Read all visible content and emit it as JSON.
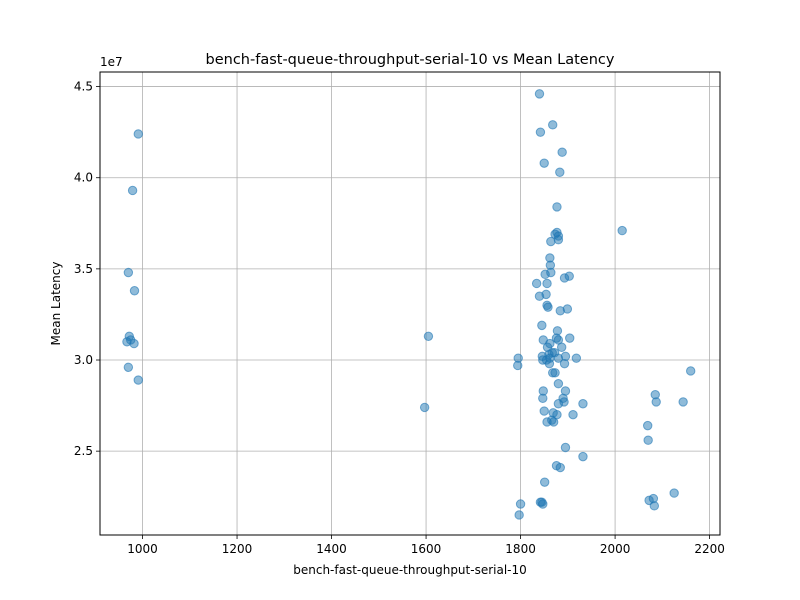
{
  "chart_data": {
    "type": "scatter",
    "title": "bench-fast-queue-throughput-serial-10 vs Mean Latency",
    "xlabel": "bench-fast-queue-throughput-serial-10",
    "ylabel": "Mean Latency",
    "y_offset_label": "1e7",
    "xlim": [
      910,
      2222
    ],
    "ylim": [
      20400000,
      45800000
    ],
    "xticks": [
      1000,
      1200,
      1400,
      1600,
      1800,
      2000,
      2200
    ],
    "xtick_labels": [
      "1000",
      "1200",
      "1400",
      "1600",
      "1800",
      "2000",
      "2200"
    ],
    "yticks": [
      25000000,
      30000000,
      35000000,
      40000000,
      45000000
    ],
    "ytick_labels": [
      "2.5",
      "3.0",
      "3.5",
      "4.0",
      "4.5"
    ],
    "grid": true,
    "marker_color": "#1f77b4",
    "marker_alpha": 0.5,
    "series": [
      {
        "points": [
          [
            991,
            42400000
          ],
          [
            979,
            39300000
          ],
          [
            970,
            34800000
          ],
          [
            983,
            33800000
          ],
          [
            972,
            31300000
          ],
          [
            975,
            31100000
          ],
          [
            967,
            31000000
          ],
          [
            982,
            30900000
          ],
          [
            970,
            29600000
          ],
          [
            991,
            28900000
          ],
          [
            1605,
            31300000
          ],
          [
            1597,
            27400000
          ],
          [
            1795,
            30100000
          ],
          [
            1794,
            29700000
          ],
          [
            1800,
            22100000
          ],
          [
            1797,
            21500000
          ],
          [
            1840,
            44600000
          ],
          [
            1842,
            42500000
          ],
          [
            1868,
            42900000
          ],
          [
            1888,
            41400000
          ],
          [
            1850,
            40800000
          ],
          [
            1883,
            40300000
          ],
          [
            1877,
            38400000
          ],
          [
            1877,
            37000000
          ],
          [
            1873,
            36900000
          ],
          [
            1880,
            36800000
          ],
          [
            1880,
            36600000
          ],
          [
            1864,
            36500000
          ],
          [
            1862,
            35600000
          ],
          [
            1863,
            35200000
          ],
          [
            1852,
            34700000
          ],
          [
            1864,
            34800000
          ],
          [
            1893,
            34500000
          ],
          [
            1903,
            34600000
          ],
          [
            1834,
            34200000
          ],
          [
            1856,
            34200000
          ],
          [
            1840,
            33500000
          ],
          [
            1854,
            33600000
          ],
          [
            1856,
            33000000
          ],
          [
            1858,
            32900000
          ],
          [
            1884,
            32700000
          ],
          [
            1899,
            32800000
          ],
          [
            1845,
            31900000
          ],
          [
            1878,
            31600000
          ],
          [
            1848,
            31100000
          ],
          [
            1876,
            31200000
          ],
          [
            1880,
            31100000
          ],
          [
            1904,
            31200000
          ],
          [
            1862,
            30900000
          ],
          [
            1857,
            30700000
          ],
          [
            1887,
            30700000
          ],
          [
            1867,
            30400000
          ],
          [
            1872,
            30400000
          ],
          [
            1846,
            30200000
          ],
          [
            1855,
            30000000
          ],
          [
            1860,
            30300000
          ],
          [
            1862,
            30100000
          ],
          [
            1880,
            30100000
          ],
          [
            1895,
            30200000
          ],
          [
            1918,
            30100000
          ],
          [
            1847,
            30000000
          ],
          [
            1861,
            29800000
          ],
          [
            1893,
            29800000
          ],
          [
            1868,
            29300000
          ],
          [
            1873,
            29300000
          ],
          [
            1880,
            28700000
          ],
          [
            1848,
            28300000
          ],
          [
            1895,
            28300000
          ],
          [
            1847,
            27900000
          ],
          [
            1890,
            27900000
          ],
          [
            1892,
            27700000
          ],
          [
            1880,
            27600000
          ],
          [
            1932,
            27600000
          ],
          [
            1850,
            27200000
          ],
          [
            1869,
            27100000
          ],
          [
            1877,
            27000000
          ],
          [
            1911,
            27000000
          ],
          [
            1856,
            26600000
          ],
          [
            1866,
            26700000
          ],
          [
            1870,
            26600000
          ],
          [
            1895,
            25200000
          ],
          [
            1932,
            24700000
          ],
          [
            1876,
            24200000
          ],
          [
            1884,
            24100000
          ],
          [
            1851,
            23300000
          ],
          [
            1842,
            22200000
          ],
          [
            1845,
            22200000
          ],
          [
            1847,
            22100000
          ],
          [
            2015,
            37100000
          ],
          [
            2160,
            29400000
          ],
          [
            2085,
            28100000
          ],
          [
            2087,
            27700000
          ],
          [
            2144,
            27700000
          ],
          [
            2069,
            26400000
          ],
          [
            2070,
            25600000
          ],
          [
            2125,
            22700000
          ],
          [
            2081,
            22400000
          ],
          [
            2072,
            22300000
          ],
          [
            2083,
            22000000
          ]
        ]
      }
    ]
  }
}
